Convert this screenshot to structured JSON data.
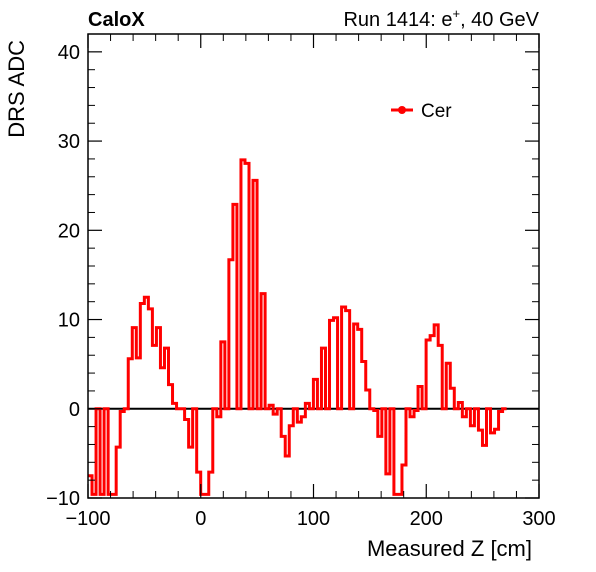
{
  "header": {
    "left_label": "CaloX",
    "run_label": "Run 1414: e",
    "run_superscript": "+",
    "run_suffix": ", 40 GeV"
  },
  "chart_data": {
    "type": "line",
    "xlabel": "Measured Z [cm]",
    "ylabel": "DRS ADC",
    "xlim": [
      -100,
      300
    ],
    "ylim": [
      -10,
      42
    ],
    "x_ticks": [
      -100,
      0,
      100,
      200,
      300
    ],
    "x_tick_labels": [
      "−100",
      "0",
      "100",
      "200",
      "300"
    ],
    "y_ticks": [
      -10,
      0,
      10,
      20,
      30,
      40
    ],
    "y_tick_labels": [
      "−10",
      "0",
      "10",
      "20",
      "30",
      "40"
    ],
    "zero_line": true,
    "grid": false,
    "legend_position": "top-right",
    "series": [
      {
        "name": "Cer",
        "color": "#ff0000",
        "style": "step",
        "bin_width": 3.57,
        "x_start": -100,
        "values": [
          -7.5,
          -9.6,
          0,
          -9.6,
          0,
          -9.6,
          -9.6,
          -4.3,
          -0.3,
          0,
          5.6,
          9.1,
          5.7,
          11.8,
          12.5,
          11.2,
          7.1,
          9.1,
          4.6,
          6.8,
          2.7,
          0.6,
          0,
          0,
          -1.2,
          -4.3,
          0,
          -7.1,
          -9.6,
          -9.6,
          -7.1,
          0,
          -0.9,
          7.5,
          0,
          16.7,
          22.9,
          0,
          27.9,
          27.5,
          0,
          25.6,
          0,
          12.9,
          0,
          0.4,
          -0.6,
          0,
          -3.1,
          -5.3,
          -1.9,
          0,
          -1.5,
          -0.9,
          0.6,
          0,
          3.3,
          0,
          6.8,
          0,
          9.9,
          10.2,
          0,
          11.4,
          11.0,
          0,
          9.5,
          8.9,
          5.3,
          2.1,
          0,
          -0.2,
          -3.1,
          0,
          -7.3,
          0,
          -9.6,
          -9.6,
          -6.3,
          0,
          -0.9,
          -0.2,
          2.5,
          0,
          7.7,
          8.2,
          9.4,
          7.1,
          0,
          5.1,
          2.3,
          0,
          0.7,
          -0.9,
          0,
          -1.9,
          0,
          -2.4,
          -4.1,
          0,
          -2.7,
          -2.3,
          -0.3,
          0
        ]
      }
    ]
  }
}
